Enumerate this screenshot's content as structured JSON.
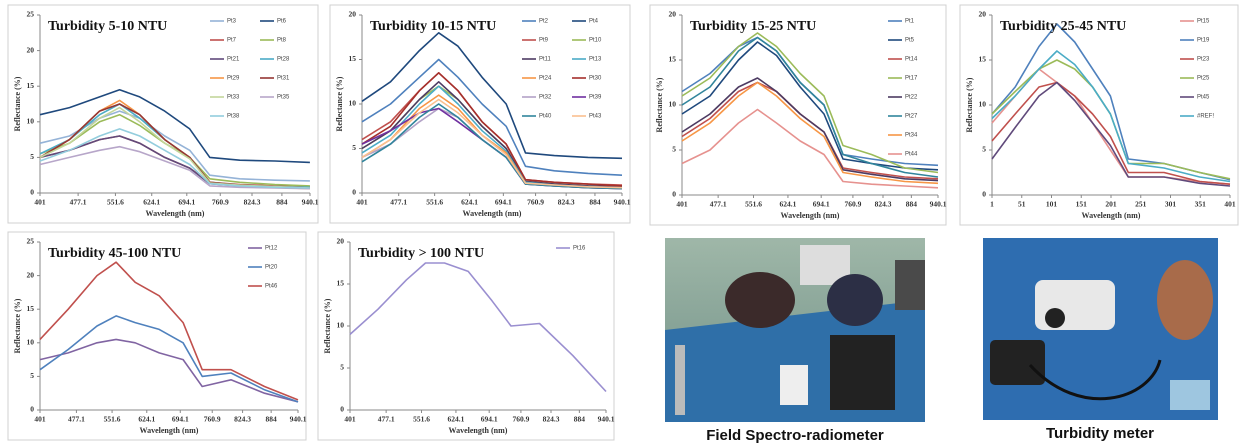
{
  "chart_data": [
    {
      "type": "line",
      "title": "Turbidity 5-10 NTU",
      "xlabel": "Wavelength (nm)",
      "ylabel": "Reflectance (%)",
      "x": [
        401,
        460,
        520,
        560,
        600,
        650,
        700,
        740,
        800,
        870,
        940
      ],
      "xlim": [
        401,
        940.1
      ],
      "xticks": [
        401,
        477.1,
        551.6,
        624.1,
        694.1,
        760.9,
        824.3,
        884,
        940.1
      ],
      "ylim": [
        0,
        25
      ],
      "yticks": [
        0,
        5,
        10,
        15,
        20,
        25
      ],
      "legend": "right",
      "series": [
        {
          "name": "Pt3",
          "color": "#95B3D7",
          "values": [
            7,
            8,
            10.5,
            11.5,
            10.5,
            8,
            6,
            2.5,
            2,
            1.8,
            1.7
          ]
        },
        {
          "name": "Pt6",
          "color": "#1F497D",
          "values": [
            11,
            12,
            13.5,
            14.5,
            13.5,
            11.5,
            9,
            5,
            4.6,
            4.5,
            4.3
          ]
        },
        {
          "name": "Pt7",
          "color": "#C0504D",
          "values": [
            5,
            6,
            7.5,
            8,
            7,
            5,
            3.5,
            1.5,
            1.2,
            1,
            0.9
          ]
        },
        {
          "name": "Pt8",
          "color": "#9BBB59",
          "values": [
            5.5,
            7,
            10,
            11,
            9.5,
            7,
            5,
            2,
            1.5,
            1.2,
            1
          ]
        },
        {
          "name": "Pt21",
          "color": "#604A7B",
          "values": [
            5,
            6,
            7.5,
            8,
            7,
            5,
            3.5,
            1.3,
            1,
            0.8,
            0.7
          ]
        },
        {
          "name": "Pt28",
          "color": "#4BACC6",
          "values": [
            5.5,
            7.5,
            11,
            12.5,
            10.5,
            7.5,
            5,
            1.5,
            1.1,
            0.9,
            0.8
          ]
        },
        {
          "name": "Pt29",
          "color": "#F79646",
          "values": [
            5,
            7.5,
            11.5,
            13,
            11,
            7.5,
            5,
            1.5,
            1,
            0.8,
            0.6
          ]
        },
        {
          "name": "Pt31",
          "color": "#943634",
          "values": [
            5,
            7.5,
            11.5,
            12.5,
            11,
            7.5,
            5,
            1.5,
            1.1,
            0.9,
            0.7
          ]
        },
        {
          "name": "Pt33",
          "color": "#C3D69B",
          "values": [
            5,
            7,
            10.5,
            12,
            10,
            7,
            4.8,
            1.4,
            1.1,
            0.9,
            0.7
          ]
        },
        {
          "name": "Pt35",
          "color": "#B7A6C9",
          "values": [
            4,
            5,
            6,
            6.5,
            5.8,
            4.5,
            3.2,
            1,
            0.8,
            0.7,
            0.6
          ]
        },
        {
          "name": "Pt38",
          "color": "#93CDDD",
          "values": [
            4.5,
            6,
            8,
            9,
            8,
            6,
            4,
            1.3,
            1,
            0.8,
            0.7
          ]
        }
      ]
    },
    {
      "type": "line",
      "title": "Turbidity 10-15 NTU",
      "xlabel": "Wavelength (nm)",
      "ylabel": "Reflectance (%)",
      "x": [
        401,
        460,
        520,
        560,
        600,
        650,
        700,
        740,
        800,
        870,
        940
      ],
      "xlim": [
        401,
        940.1
      ],
      "xticks": [
        401,
        477.1,
        551.6,
        624.1,
        694.1,
        760.9,
        824.3,
        884,
        940.1
      ],
      "ylim": [
        0,
        20
      ],
      "yticks": [
        0,
        5,
        10,
        15,
        20
      ],
      "legend": "right",
      "series": [
        {
          "name": "Pt2",
          "color": "#4F81BD",
          "values": [
            8,
            10,
            13,
            15,
            13,
            10,
            7.5,
            3,
            2.5,
            2.2,
            2
          ]
        },
        {
          "name": "Pt4",
          "color": "#1F497D",
          "values": [
            10.3,
            12.5,
            16,
            18,
            16.5,
            13,
            10,
            4.5,
            4.2,
            4,
            3.9
          ]
        },
        {
          "name": "Pt9",
          "color": "#C0504D",
          "values": [
            6,
            8,
            11.5,
            13.5,
            11.5,
            8,
            5.5,
            1.5,
            1.2,
            1,
            0.9
          ]
        },
        {
          "name": "Pt10",
          "color": "#9BBB59",
          "values": [
            5,
            7,
            10.5,
            12,
            10.5,
            7.5,
            5,
            1.3,
            1,
            0.8,
            0.7
          ]
        },
        {
          "name": "Pt11",
          "color": "#4D3B62",
          "values": [
            5,
            7,
            10.5,
            12.5,
            10.5,
            7.5,
            5,
            1.3,
            1,
            0.8,
            0.7
          ]
        },
        {
          "name": "Pt13",
          "color": "#4BACC6",
          "values": [
            4.5,
            6.5,
            10,
            12,
            10,
            7,
            4.7,
            1.2,
            0.9,
            0.7,
            0.6
          ]
        },
        {
          "name": "Pt24",
          "color": "#F79646",
          "values": [
            4,
            6,
            9.5,
            11,
            9.5,
            6.5,
            4.5,
            1.1,
            0.8,
            0.6,
            0.5
          ]
        },
        {
          "name": "Pt30",
          "color": "#A5302C",
          "values": [
            5.5,
            7.5,
            11.5,
            13.5,
            11.5,
            8,
            5.5,
            1.5,
            1.2,
            1,
            0.8
          ]
        },
        {
          "name": "Pt32",
          "color": "#B3A2C7",
          "values": [
            4,
            5.5,
            8,
            9.5,
            8.5,
            6,
            4,
            1,
            0.8,
            0.6,
            0.5
          ]
        },
        {
          "name": "Pt39",
          "color": "#7030A0",
          "values": [
            5.5,
            7,
            9,
            9.5,
            8,
            6,
            4,
            1,
            0.8,
            0.6,
            0.5
          ]
        },
        {
          "name": "Pt40",
          "color": "#31859C",
          "values": [
            3.5,
            5.5,
            8.5,
            10,
            8.5,
            6,
            4,
            1,
            0.8,
            0.6,
            0.5
          ]
        },
        {
          "name": "Pt43",
          "color": "#FAC090",
          "values": [
            4,
            6,
            9,
            10.5,
            9,
            6.5,
            4.3,
            1.1,
            0.9,
            0.7,
            0.6
          ]
        }
      ]
    },
    {
      "type": "line",
      "title": "Turbidity 15-25 NTU",
      "xlabel": "Wavelength (nm)",
      "ylabel": "Reflectance (%)",
      "x": [
        401,
        460,
        520,
        560,
        600,
        650,
        700,
        740,
        800,
        870,
        940
      ],
      "xlim": [
        401,
        940.1
      ],
      "xticks": [
        401,
        477.1,
        551.6,
        624.1,
        694.1,
        760.9,
        824.3,
        884,
        940.1
      ],
      "ylim": [
        0,
        20
      ],
      "yticks": [
        0,
        5,
        10,
        15,
        20
      ],
      "legend": "right",
      "series": [
        {
          "name": "Pt1",
          "color": "#4F81BD",
          "values": [
            11.5,
            13.5,
            16.5,
            17.5,
            16,
            12.5,
            10,
            4.5,
            4,
            3.5,
            3.3
          ]
        },
        {
          "name": "Pt5",
          "color": "#1F497D",
          "values": [
            9,
            11,
            15,
            17,
            15.5,
            12,
            9,
            4,
            3.5,
            3,
            2.8
          ]
        },
        {
          "name": "Pt14",
          "color": "#C0504D",
          "values": [
            6.5,
            8.5,
            11.5,
            12.5,
            11.5,
            9,
            7,
            3,
            2.5,
            2,
            1.8
          ]
        },
        {
          "name": "Pt17",
          "color": "#9BBB59",
          "values": [
            11,
            13,
            16.5,
            18,
            16.5,
            13.5,
            11,
            5.5,
            4.5,
            3,
            2.5
          ]
        },
        {
          "name": "Pt22",
          "color": "#4D3B62",
          "values": [
            7,
            9,
            12,
            13,
            11.5,
            9,
            7,
            2.8,
            2.3,
            1.8,
            1.6
          ]
        },
        {
          "name": "Pt27",
          "color": "#31859C",
          "values": [
            10,
            12,
            16,
            17.5,
            16,
            12.5,
            10,
            4.5,
            3.5,
            2.5,
            2
          ]
        },
        {
          "name": "Pt34",
          "color": "#F79646",
          "values": [
            6,
            8,
            11,
            12.5,
            11,
            8.5,
            6.5,
            2.5,
            2,
            1.5,
            1.3
          ]
        },
        {
          "name": "Pt44",
          "color": "#E6928F",
          "values": [
            3.5,
            5,
            8,
            9.5,
            8,
            6,
            4.5,
            1.5,
            1.2,
            1,
            0.8
          ]
        }
      ]
    },
    {
      "type": "line",
      "title": "Turbidity 25-45 NTU",
      "xlabel": "Wavelength (nm)",
      "ylabel": "Reflectance (%)",
      "x": [
        1,
        40,
        80,
        110,
        140,
        170,
        200,
        230,
        290,
        350,
        401
      ],
      "xlim": [
        1,
        401
      ],
      "xticks": [
        1,
        51,
        101,
        151,
        201,
        251,
        301,
        351,
        401
      ],
      "ylim": [
        0,
        20
      ],
      "yticks": [
        0,
        5,
        10,
        15,
        20
      ],
      "legend": "right",
      "series": [
        {
          "name": "Pt15",
          "color": "#E6928F",
          "values": [
            8,
            11,
            14,
            12.5,
            11,
            8,
            5,
            2,
            2,
            1.5,
            1.2
          ]
        },
        {
          "name": "Pt19",
          "color": "#4F81BD",
          "values": [
            9,
            12,
            16.5,
            19,
            17,
            14,
            11,
            4,
            3.5,
            2.5,
            1.7
          ]
        },
        {
          "name": "Pt23",
          "color": "#C0504D",
          "values": [
            6,
            9,
            12,
            12.5,
            11,
            9,
            6.5,
            2.5,
            2.5,
            1.5,
            1.2
          ]
        },
        {
          "name": "Pt25",
          "color": "#9BBB59",
          "values": [
            9,
            11.5,
            14,
            15,
            14,
            12,
            9,
            3.5,
            3.5,
            2.5,
            1.8
          ]
        },
        {
          "name": "Pt45",
          "color": "#604A7B",
          "values": [
            4,
            7.5,
            11,
            12.5,
            10.5,
            8,
            5.5,
            2,
            2,
            1.3,
            1
          ]
        },
        {
          "name": "#REF!",
          "color": "#4BACC6",
          "values": [
            8.5,
            11,
            14,
            16,
            14.5,
            12,
            9,
            3.5,
            3,
            2,
            1.5
          ]
        }
      ]
    },
    {
      "type": "line",
      "title": "Turbidity 45-100 NTU",
      "xlabel": "Wavelength (nm)",
      "ylabel": "Reflectance (%)",
      "x": [
        401,
        460,
        520,
        560,
        600,
        650,
        700,
        740,
        800,
        870,
        940
      ],
      "xlim": [
        401,
        940.1
      ],
      "xticks": [
        401,
        477.1,
        551.6,
        624.1,
        694.1,
        760.9,
        824.3,
        884,
        940.1
      ],
      "ylim": [
        0,
        25
      ],
      "yticks": [
        0,
        5,
        10,
        15,
        20,
        25
      ],
      "legend": "right",
      "series": [
        {
          "name": "Pt12",
          "color": "#8064A2",
          "values": [
            7.5,
            8.5,
            10,
            10.5,
            10,
            8.5,
            7.5,
            3.5,
            4.5,
            2.5,
            1.2
          ]
        },
        {
          "name": "Pt20",
          "color": "#4F81BD",
          "values": [
            6,
            9,
            12.5,
            14,
            13,
            12,
            10,
            5,
            5.5,
            3,
            1.2
          ]
        },
        {
          "name": "Pt46",
          "color": "#C0504D",
          "values": [
            10.5,
            15,
            20,
            22,
            19,
            17,
            13,
            6,
            6,
            3.5,
            1.5
          ]
        }
      ]
    },
    {
      "type": "line",
      "title": "Turbidity > 100 NTU",
      "xlabel": "Wavelength (nm)",
      "ylabel": "Reflectance (%)",
      "x": [
        401,
        460,
        520,
        560,
        600,
        650,
        700,
        740,
        800,
        870,
        940
      ],
      "xlim": [
        401,
        940.1
      ],
      "xticks": [
        401,
        477.1,
        551.6,
        624.1,
        694.1,
        760.9,
        824.3,
        884,
        940.1
      ],
      "ylim": [
        0,
        20
      ],
      "yticks": [
        0,
        5,
        10,
        15,
        20
      ],
      "legend": "right",
      "series": [
        {
          "name": "Pt16",
          "color": "#9A8FD0",
          "values": [
            9,
            12,
            15.5,
            17.5,
            17.5,
            16.5,
            13,
            10,
            10.3,
            6.5,
            2.2
          ]
        }
      ]
    }
  ],
  "photos": [
    {
      "caption": "Field Spectro-radiometer"
    },
    {
      "caption": "Turbidity meter"
    }
  ]
}
